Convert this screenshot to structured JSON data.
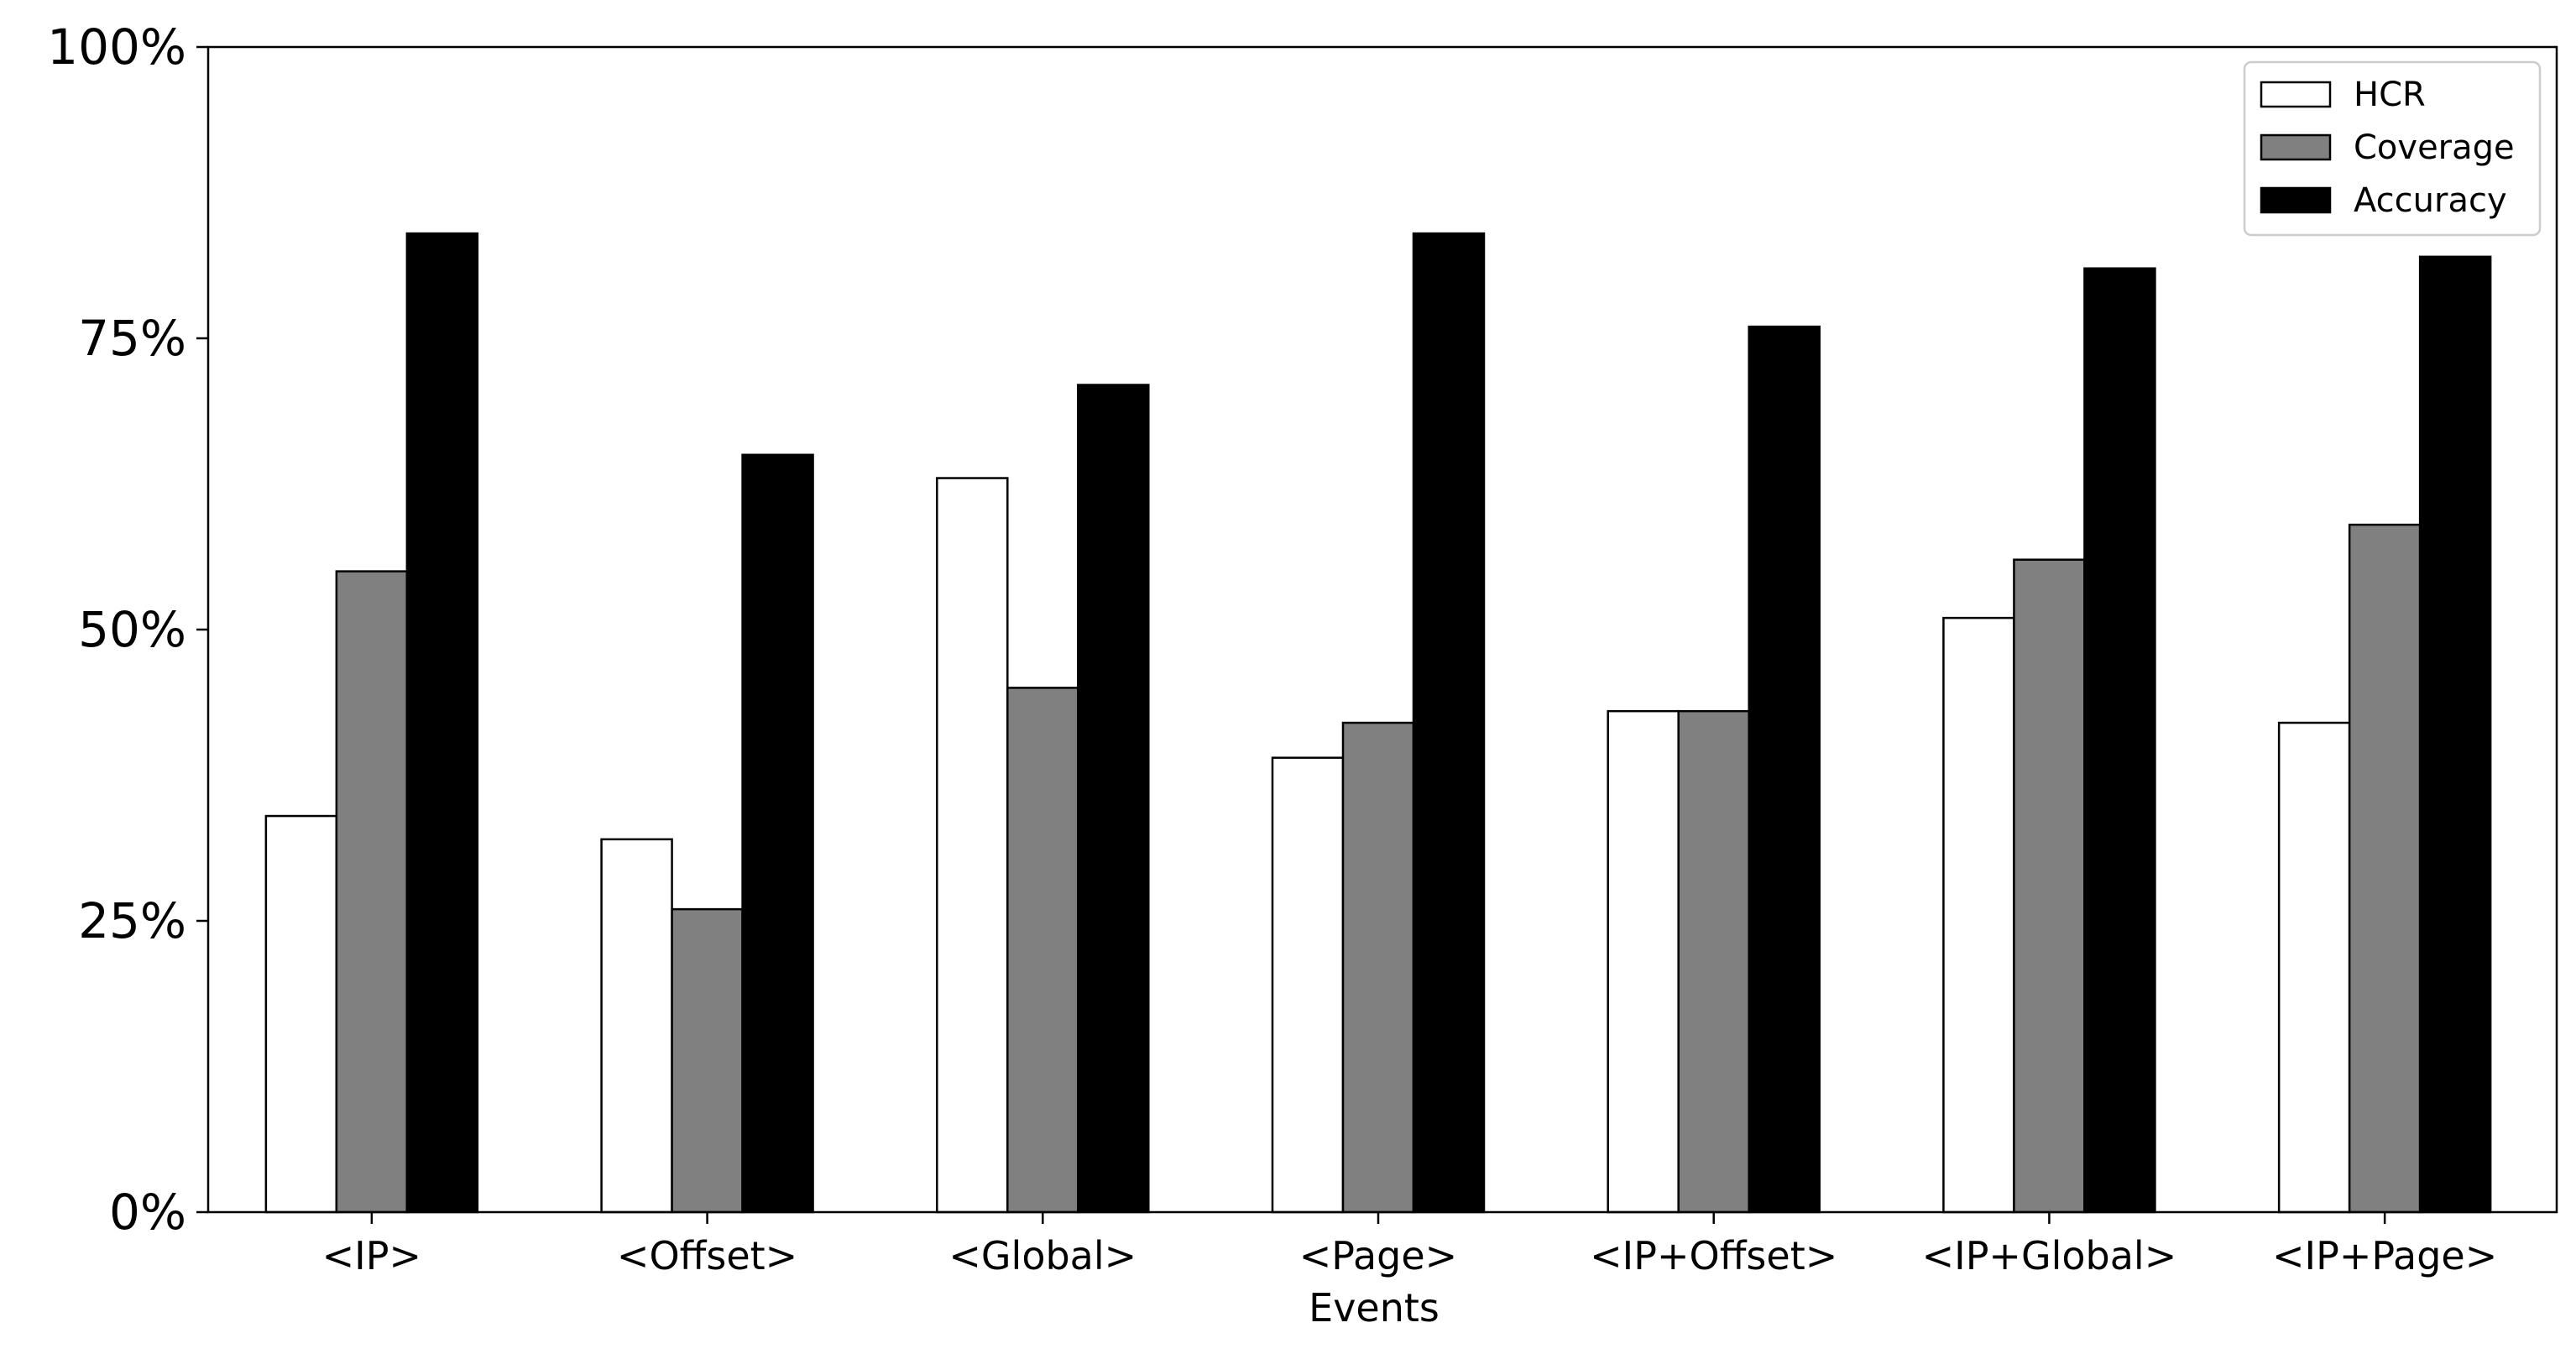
{
  "chart_data": {
    "type": "bar",
    "title": "",
    "xlabel": "Events",
    "ylabel": "",
    "ylim": [
      0,
      100
    ],
    "y_unit": "%",
    "y_ticks": [
      0,
      25,
      50,
      75,
      100
    ],
    "y_tick_labels": [
      "0%",
      "25%",
      "50%",
      "75%",
      "100%"
    ],
    "grid": false,
    "legend_position": "top-right",
    "categories": [
      "<IP>",
      "<Offset>",
      "<Global>",
      "<Page>",
      "<IP+Offset>",
      "<IP+Global>",
      "<IP+Page>"
    ],
    "series": [
      {
        "name": "HCR",
        "color": "#ffffff",
        "values": [
          34,
          32,
          63,
          39,
          43,
          51,
          42
        ]
      },
      {
        "name": "Coverage",
        "color": "#808080",
        "values": [
          55,
          26,
          45,
          42,
          43,
          56,
          59
        ]
      },
      {
        "name": "Accuracy",
        "color": "#000000",
        "values": [
          84,
          65,
          71,
          84,
          76,
          81,
          82
        ]
      }
    ]
  }
}
